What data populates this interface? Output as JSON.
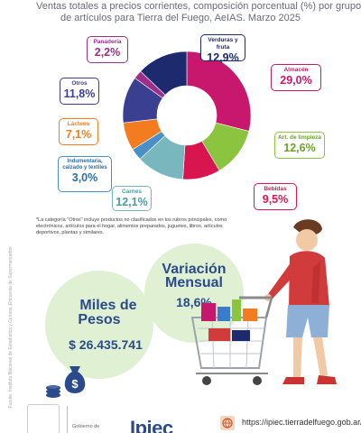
{
  "header": {
    "line1": "Ventas totales a precios corrientes, composición porcentual (%) por grupo",
    "line2": "de artículos para Tierra del Fuego, AeIAS.   Marzo   2025"
  },
  "chart_data": {
    "type": "pie",
    "title": "Ventas totales a precios corrientes, composición porcentual (%) por grupo de artículos para Tierra del Fuego, AeIAS. Marzo 2025",
    "slices": [
      {
        "label": "Almacén",
        "value_text": "29,0%",
        "value": 29.0,
        "color": "#c8186d"
      },
      {
        "label": "Art. de limpieza",
        "value_text": "12,6%",
        "value": 12.6,
        "color": "#8bc53f"
      },
      {
        "label": "Bebidas",
        "value_text": "9,5%",
        "value": 9.5,
        "color": "#d9154f"
      },
      {
        "label": "Carnes",
        "value_text": "12,1%",
        "value": 12.1,
        "color": "#78b7bd"
      },
      {
        "label": "Indumentaria, calzado y textiles",
        "value_text": "3,0%",
        "value": 3.0,
        "color": "#4a90c8"
      },
      {
        "label": "Lácteos",
        "value_text": "7,1%",
        "value": 7.1,
        "color": "#f47c20"
      },
      {
        "label": "Otros",
        "value_text": "11,8%",
        "value": 11.8,
        "color": "#3a3f92"
      },
      {
        "label": "Panadería",
        "value_text": "2,2%",
        "value": 2.2,
        "color": "#9b2f8a"
      },
      {
        "label": "Verduras y fruta",
        "value_text": "12,9%",
        "value": 12.9,
        "color": "#1e2a6e"
      }
    ]
  },
  "note": "*La categoría \"Otros\" incluye productos no clasificados en los rubros principales, como electrónicos, artículos para el hogar, alimentos preparados, juguetes, libros, artículos deportivos, plantas y similares.",
  "source": "Fuente: Instituto Nacional de Estadística y Censos, Encuesta de Supermercados",
  "variation": {
    "title_line1": "Variación",
    "title_line2": "Mensual",
    "value": "18,6%"
  },
  "sales": {
    "title_line1": "Miles de",
    "title_line2": "Pesos",
    "value": "$ 26.435.741"
  },
  "footer": {
    "gov_text": "Gobierno de",
    "logo": "Ipiec",
    "url": "https://ipiec.tierradelfuego.gob.ar/"
  },
  "colors": {
    "accent_blue": "#2b4a8c",
    "bubble_green": "#dff1d2",
    "bubble_green2": "#cfe9bf"
  }
}
